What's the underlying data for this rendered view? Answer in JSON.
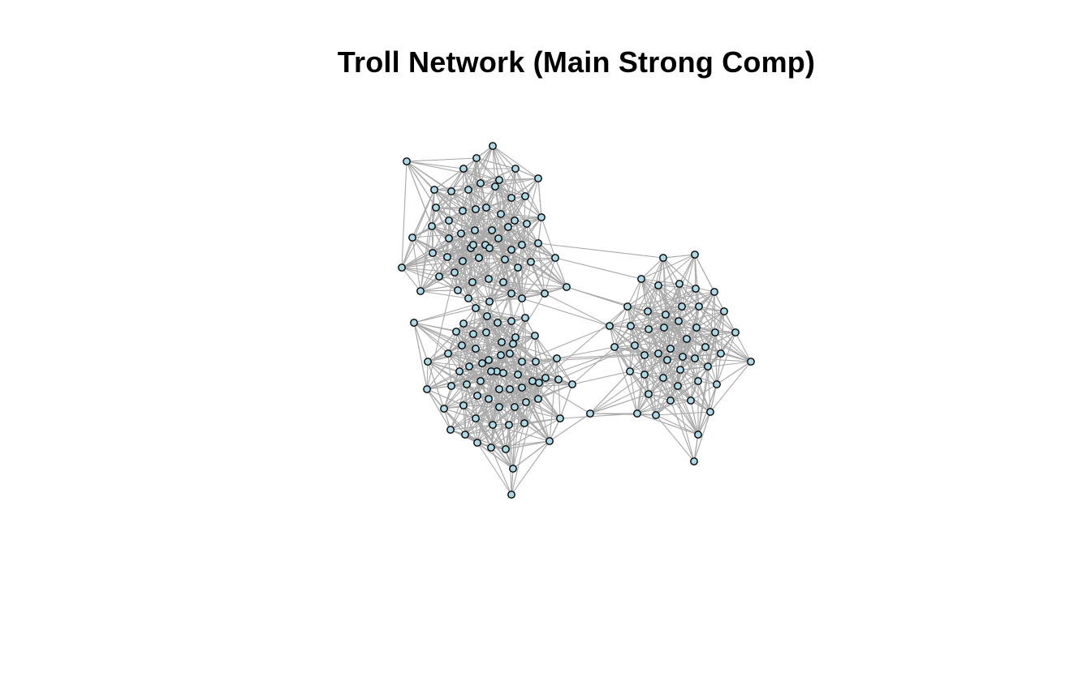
{
  "title": "Troll Network (Main Strong Comp)",
  "colors": {
    "node_fill": "#add8e6",
    "node_stroke": "#000000",
    "edge": "#a9a9a9",
    "background": "#ffffff"
  },
  "network": {
    "layout": "force-directed",
    "communities": 3,
    "directed": true
  }
}
